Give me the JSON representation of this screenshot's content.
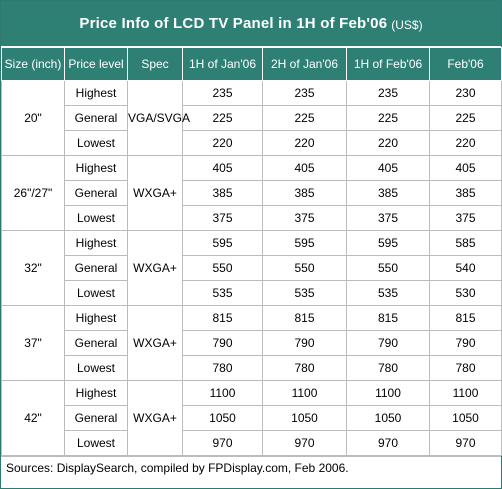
{
  "title": {
    "main": "Price Info of LCD TV Panel in 1H of Feb'06",
    "unit": "(US$)"
  },
  "table": {
    "headers": [
      "Size (inch)",
      "Price level",
      "Spec",
      "1H of Jan'06",
      "2H of Jan'06",
      "1H of Feb'06",
      "Feb'06"
    ],
    "groups": [
      {
        "size": "20\"",
        "spec": "VGA/SVGA",
        "rows": [
          {
            "level": "Highest",
            "values": [
              "235",
              "235",
              "235",
              "230"
            ]
          },
          {
            "level": "General",
            "values": [
              "225",
              "225",
              "225",
              "225"
            ]
          },
          {
            "level": "Lowest",
            "values": [
              "220",
              "220",
              "220",
              "220"
            ]
          }
        ]
      },
      {
        "size": "26\"/27\"",
        "spec": "WXGA+",
        "rows": [
          {
            "level": "Highest",
            "values": [
              "405",
              "405",
              "405",
              "405"
            ]
          },
          {
            "level": "General",
            "values": [
              "385",
              "385",
              "385",
              "385"
            ]
          },
          {
            "level": "Lowest",
            "values": [
              "375",
              "375",
              "375",
              "375"
            ]
          }
        ]
      },
      {
        "size": "32\"",
        "spec": "WXGA+",
        "rows": [
          {
            "level": "Highest",
            "values": [
              "595",
              "595",
              "595",
              "585"
            ]
          },
          {
            "level": "General",
            "values": [
              "550",
              "550",
              "550",
              "540"
            ]
          },
          {
            "level": "Lowest",
            "values": [
              "535",
              "535",
              "535",
              "530"
            ]
          }
        ]
      },
      {
        "size": "37\"",
        "spec": "WXGA+",
        "rows": [
          {
            "level": "Highest",
            "values": [
              "815",
              "815",
              "815",
              "815"
            ]
          },
          {
            "level": "General",
            "values": [
              "790",
              "790",
              "790",
              "790"
            ]
          },
          {
            "level": "Lowest",
            "values": [
              "780",
              "780",
              "780",
              "780"
            ]
          }
        ]
      },
      {
        "size": "42\"",
        "spec": "WXGA+",
        "rows": [
          {
            "level": "Highest",
            "values": [
              "1100",
              "1100",
              "1100",
              "1100"
            ]
          },
          {
            "level": "General",
            "values": [
              "1050",
              "1050",
              "1050",
              "1050"
            ]
          },
          {
            "level": "Lowest",
            "values": [
              "970",
              "970",
              "970",
              "970"
            ]
          }
        ]
      }
    ]
  },
  "source": "Sources: DisplaySearch, compiled by FPDisplay.com, Feb 2006.",
  "colors": {
    "header_bg": "#2e8075",
    "header_text": "#ffffff",
    "grid": "#bcbcbc"
  }
}
